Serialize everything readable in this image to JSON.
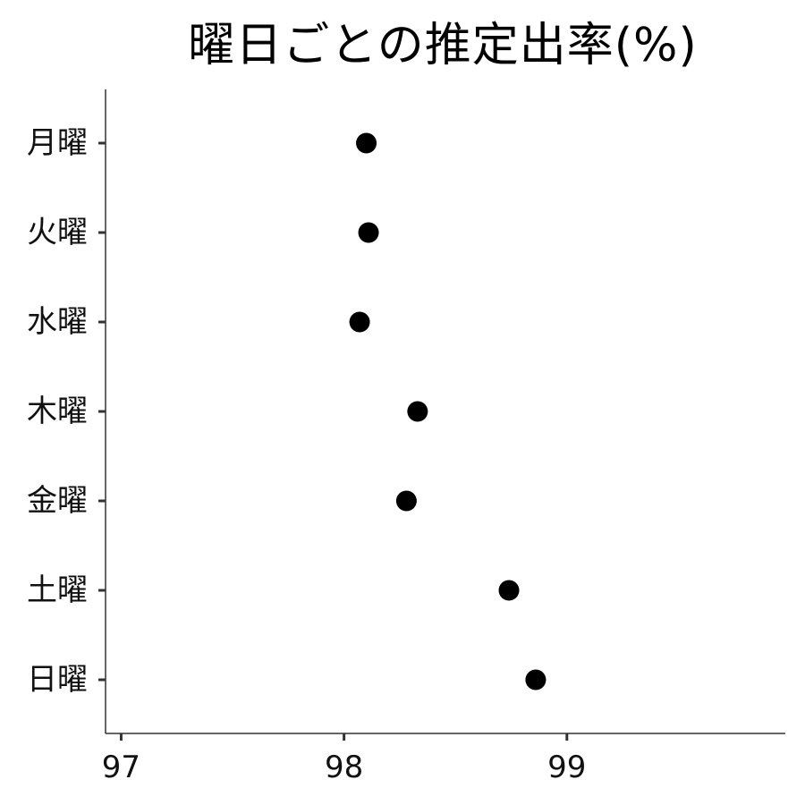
{
  "chart_data": {
    "type": "scatter",
    "title": "曜日ごとの推定出率(%)",
    "xlabel": "",
    "ylabel": "",
    "xlim": [
      96.93,
      99.98
    ],
    "xticks": [
      97,
      98,
      99
    ],
    "categories": [
      "月曜",
      "火曜",
      "水曜",
      "木曜",
      "金曜",
      "土曜",
      "日曜"
    ],
    "values": [
      98.1,
      98.11,
      98.07,
      98.33,
      98.28,
      98.74,
      98.86
    ],
    "grid": false,
    "legend": "none",
    "point_color": "#000000"
  }
}
